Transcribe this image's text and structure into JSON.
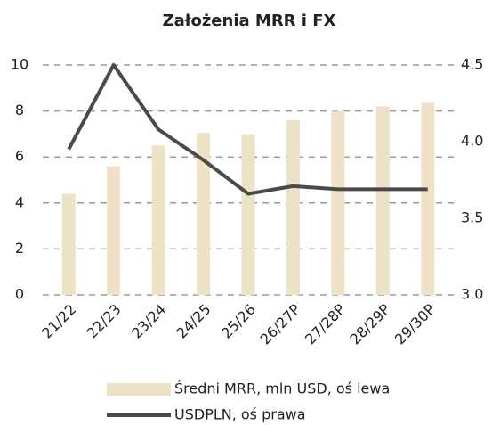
{
  "chart_data": {
    "type": "bar",
    "title": "Założenia MRR i FX",
    "categories": [
      "21/22",
      "22/23",
      "23/24",
      "24/25",
      "25/26",
      "26/27P",
      "27/28P",
      "28/29P",
      "29/30P"
    ],
    "series": [
      {
        "name": "Średni MRR, mln USD, oś lewa",
        "type": "bar",
        "color": "#ede1c6",
        "values": [
          4.4,
          5.6,
          6.5,
          7.05,
          7.0,
          7.6,
          8.0,
          8.2,
          8.35
        ]
      },
      {
        "name": "USDPLN, oś prawa",
        "type": "line",
        "axis": "y2",
        "color": "#4a4a4a",
        "values": [
          3.95,
          4.5,
          4.08,
          3.88,
          3.66,
          3.71,
          3.69,
          3.69,
          3.69
        ]
      }
    ],
    "ylim": [
      0,
      10
    ],
    "yticks": [
      0,
      2,
      4,
      6,
      8,
      10
    ],
    "y2lim": [
      3,
      4.5
    ],
    "y2ticks": [
      {
        "value": 3,
        "label": "3.0"
      },
      3.5,
      {
        "value": 4,
        "label": "4.0"
      },
      4.5
    ],
    "grid": true,
    "legend": "bottom"
  }
}
